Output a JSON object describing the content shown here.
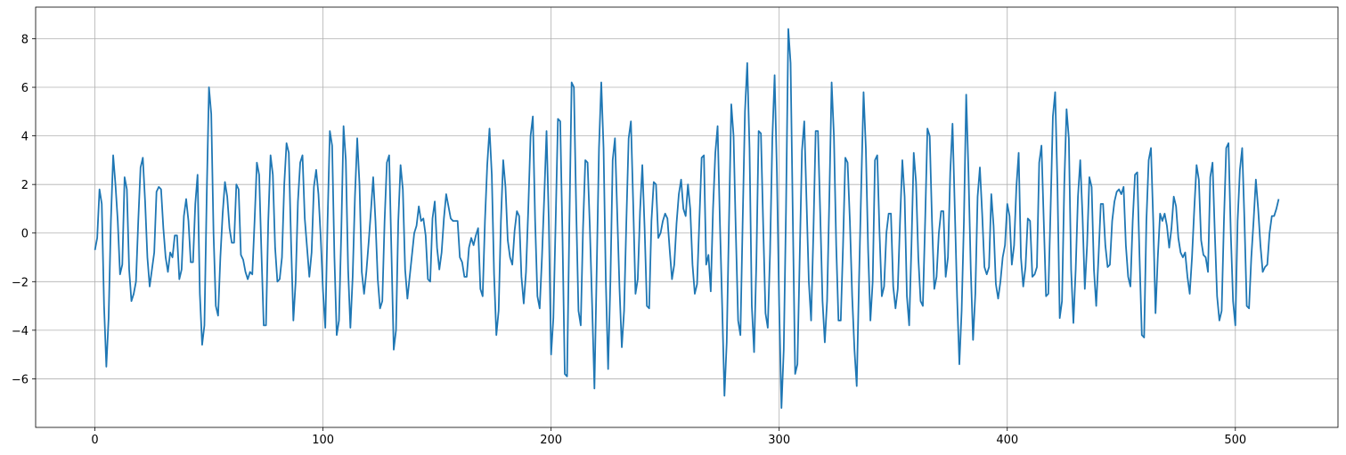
{
  "chart_data": {
    "type": "line",
    "xlim": [
      -26,
      545
    ],
    "xticks": [
      0,
      100,
      200,
      300,
      400,
      500
    ],
    "ylim": [
      -8,
      9.3
    ],
    "yticks": [
      {
        "value": -6,
        "label": "−6"
      },
      {
        "value": -4,
        "label": "−4"
      },
      {
        "value": -2,
        "label": "−2"
      },
      0,
      2,
      4,
      6,
      8
    ],
    "grid": true,
    "series": [
      {
        "color": "#1f77b4",
        "values": [
          -0.7,
          -0.2,
          1.8,
          1.2,
          -3.0,
          -5.5,
          -3.5,
          0.5,
          3.2,
          2.0,
          0.5,
          -1.7,
          -1.3,
          2.3,
          1.8,
          -1.5,
          -2.8,
          -2.5,
          -2.0,
          0.5,
          2.7,
          3.1,
          1.3,
          -1.0,
          -2.2,
          -1.5,
          -0.8,
          1.7,
          1.9,
          1.8,
          0.2,
          -1.0,
          -1.6,
          -0.8,
          -1.0,
          -0.1,
          -0.1,
          -1.9,
          -1.5,
          0.7,
          1.4,
          0.5,
          -1.2,
          -1.2,
          1.2,
          2.4,
          -2.5,
          -4.6,
          -3.8,
          1.5,
          6.0,
          4.9,
          0.0,
          -3.0,
          -3.4,
          -1.0,
          0.8,
          2.1,
          1.5,
          0.2,
          -0.4,
          -0.4,
          2.0,
          1.8,
          -0.9,
          -1.1,
          -1.6,
          -1.9,
          -1.6,
          -1.7,
          0.5,
          2.9,
          2.4,
          -0.8,
          -3.8,
          -3.8,
          0.5,
          3.2,
          2.4,
          -0.6,
          -2.0,
          -1.9,
          -1.0,
          2.0,
          3.7,
          3.3,
          -0.4,
          -3.6,
          -2.0,
          1.3,
          2.9,
          3.2,
          0.6,
          -0.6,
          -1.8,
          -0.8,
          1.9,
          2.6,
          1.6,
          -0.2,
          -2.4,
          -3.9,
          0.5,
          4.2,
          3.6,
          -1.0,
          -4.2,
          -3.6,
          0.0,
          4.4,
          3.0,
          -1.5,
          -3.9,
          -1.8,
          1.5,
          3.9,
          2.0,
          -1.6,
          -2.5,
          -1.6,
          -0.4,
          0.9,
          2.3,
          0.5,
          -1.9,
          -3.1,
          -2.8,
          0.5,
          2.9,
          3.2,
          -0.8,
          -4.8,
          -4.0,
          0.5,
          2.8,
          1.8,
          -1.5,
          -2.7,
          -1.8,
          -0.9,
          0.0,
          0.3,
          1.1,
          0.5,
          0.6,
          -0.1,
          -1.9,
          -2.0,
          0.6,
          1.3,
          -0.6,
          -1.5,
          -0.8,
          0.6,
          1.6,
          1.1,
          0.6,
          0.5,
          0.5,
          0.5,
          -1.0,
          -1.2,
          -1.8,
          -1.8,
          -0.6,
          -0.2,
          -0.5,
          -0.1,
          0.2,
          -2.3,
          -2.6,
          0.5,
          2.8,
          4.3,
          2.4,
          -1.7,
          -4.2,
          -3.2,
          0.5,
          3.0,
          1.9,
          -0.3,
          -1.0,
          -1.3,
          0.1,
          0.9,
          0.7,
          -1.8,
          -2.9,
          -1.6,
          1.0,
          4.0,
          4.8,
          0.5,
          -2.6,
          -3.1,
          -1.0,
          1.5,
          4.2,
          0.5,
          -5.0,
          -3.5,
          0.5,
          4.7,
          4.6,
          -0.2,
          -5.8,
          -5.9,
          0.3,
          6.2,
          6.0,
          1.0,
          -3.2,
          -3.8,
          0.2,
          3.0,
          2.9,
          0.2,
          -3.0,
          -6.4,
          -1.5,
          3.5,
          6.2,
          3.5,
          -2.0,
          -5.6,
          -2.0,
          3.0,
          3.9,
          0.8,
          -2.3,
          -4.7,
          -3.2,
          0.5,
          3.9,
          4.6,
          1.2,
          -2.5,
          -1.9,
          0.9,
          2.8,
          0.2,
          -3.0,
          -3.1,
          0.5,
          2.1,
          2.0,
          -0.2,
          0.0,
          0.5,
          0.8,
          0.6,
          -0.7,
          -1.9,
          -1.3,
          0.4,
          1.6,
          2.2,
          1.0,
          0.7,
          2.0,
          1.0,
          -1.3,
          -2.5,
          -2.1,
          0.5,
          3.1,
          3.2,
          -1.3,
          -0.9,
          -2.4,
          1.0,
          3.3,
          4.4,
          0.5,
          -3.0,
          -6.7,
          -4.5,
          0.5,
          5.3,
          4.0,
          0.0,
          -3.6,
          -4.2,
          0.5,
          5.0,
          7.0,
          3.5,
          -3.0,
          -4.9,
          -1.2,
          4.2,
          4.1,
          0.3,
          -3.3,
          -3.9,
          -0.8,
          3.9,
          6.5,
          2.5,
          -3.0,
          -7.2,
          -4.8,
          1.0,
          8.4,
          7.0,
          0.5,
          -5.8,
          -5.4,
          -1.0,
          3.4,
          4.6,
          1.3,
          -2.0,
          -3.6,
          0.0,
          4.2,
          4.2,
          0.8,
          -2.8,
          -4.5,
          -2.8,
          1.5,
          6.2,
          4.0,
          -0.5,
          -3.6,
          -3.6,
          -0.5,
          3.1,
          2.9,
          0.5,
          -2.6,
          -4.8,
          -6.3,
          -2.0,
          2.0,
          5.8,
          3.5,
          -0.7,
          -3.6,
          -2.0,
          3.0,
          3.2,
          0.0,
          -2.6,
          -2.2,
          0.0,
          0.8,
          0.8,
          -2.2,
          -3.1,
          -2.3,
          0.5,
          3.0,
          1.5,
          -2.6,
          -3.8,
          -0.5,
          3.3,
          2.1,
          -1.0,
          -2.8,
          -3.0,
          0.5,
          4.3,
          4.0,
          0.5,
          -2.3,
          -1.8,
          0.0,
          0.9,
          0.9,
          -1.8,
          -1.0,
          2.5,
          4.5,
          1.0,
          -2.6,
          -5.4,
          -3.2,
          0.5,
          5.7,
          2.5,
          -1.5,
          -4.4,
          -2.5,
          1.5,
          2.7,
          0.8,
          -1.4,
          -1.7,
          -1.4,
          1.6,
          0.3,
          -2.1,
          -2.7,
          -2.0,
          -1.0,
          -0.5,
          1.2,
          0.7,
          -1.3,
          -0.5,
          1.9,
          3.3,
          -1.0,
          -2.2,
          -1.4,
          0.6,
          0.5,
          -1.8,
          -1.7,
          -1.4,
          2.9,
          3.6,
          0.5,
          -2.6,
          -2.5,
          1.0,
          4.8,
          5.8,
          2.0,
          -3.5,
          -2.8,
          2.0,
          5.1,
          3.9,
          -1.5,
          -3.7,
          -1.5,
          1.5,
          3.0,
          0.7,
          -2.3,
          -0.5,
          2.3,
          1.9,
          -1.5,
          -3.0,
          -1.0,
          1.2,
          1.2,
          -0.5,
          -1.4,
          -1.3,
          0.5,
          1.3,
          1.7,
          1.8,
          1.6,
          1.9,
          -0.5,
          -1.8,
          -2.2,
          0.5,
          2.4,
          2.5,
          -1.0,
          -4.2,
          -4.3,
          0.5,
          3.0,
          3.5,
          0.5,
          -3.3,
          -1.0,
          0.8,
          0.5,
          0.8,
          0.3,
          -0.6,
          0.2,
          1.5,
          1.1,
          -0.2,
          -0.8,
          -1.0,
          -0.8,
          -1.8,
          -2.5,
          -1.0,
          1.0,
          2.8,
          2.2,
          -0.3,
          -0.9,
          -1.0,
          -1.6,
          2.3,
          2.9,
          0.0,
          -2.6,
          -3.6,
          -3.2,
          0.5,
          3.5,
          3.7,
          0.0,
          -2.8,
          -3.8,
          0.5,
          2.6,
          3.5,
          0.5,
          -3.0,
          -3.1,
          -1.0,
          0.5,
          2.2,
          1.0,
          -0.5,
          -1.6,
          -1.4,
          -1.3,
          0.0,
          0.7,
          0.7,
          1.0,
          1.4
        ]
      }
    ]
  }
}
